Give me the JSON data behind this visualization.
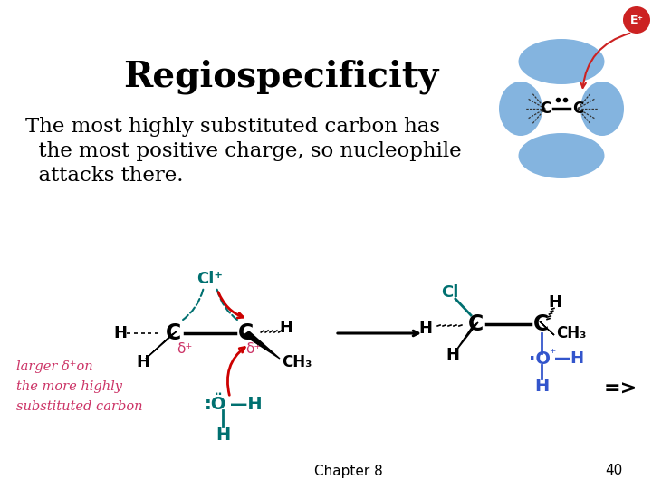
{
  "title": "Regiospecificity",
  "subtitle_lines": [
    "The most highly substituted carbon has",
    "  the most positive charge, so nucleophile",
    "  attacks there."
  ],
  "background_color": "#ffffff",
  "title_color": "#000000",
  "title_fontsize": 28,
  "subtitle_fontsize": 16.5,
  "teal_color": "#007070",
  "red_color": "#cc0000",
  "pink_color": "#cc3366",
  "blue_color": "#3355cc",
  "footer_chapter": "Chapter 8",
  "footer_page": "40"
}
